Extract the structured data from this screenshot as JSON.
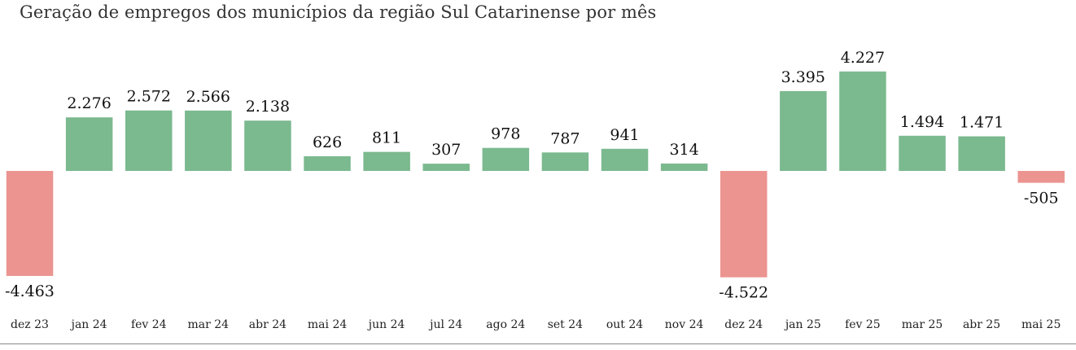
{
  "chart_data": {
    "type": "bar",
    "title": "Geração de empregos dos municípios da região Sul Catarinense por mês",
    "categories": [
      "dez 23",
      "jan 24",
      "fev 24",
      "mar 24",
      "abr 24",
      "mai 24",
      "jun 24",
      "jul 24",
      "ago 24",
      "set 24",
      "out 24",
      "nov 24",
      "dez 24",
      "jan 25",
      "fev 25",
      "mar 25",
      "abr 25",
      "mai 25"
    ],
    "values": [
      -4463,
      2276,
      2572,
      2566,
      2138,
      626,
      811,
      307,
      978,
      787,
      941,
      314,
      -4522,
      3395,
      4227,
      1494,
      1471,
      -505
    ],
    "value_labels": [
      "-4.463",
      "2.276",
      "2.572",
      "2.566",
      "2.138",
      "626",
      "811",
      "307",
      "978",
      "787",
      "941",
      "314",
      "-4.522",
      "3.395",
      "4.227",
      "1.494",
      "1.471",
      "-505"
    ],
    "xlabel": "",
    "ylabel": "",
    "ylim": [
      -4522,
      4227
    ],
    "grid": false,
    "legend": "none",
    "colors": {
      "positive": "#7bb98f",
      "negative": "#eb9490",
      "baseline": "#888888"
    }
  }
}
